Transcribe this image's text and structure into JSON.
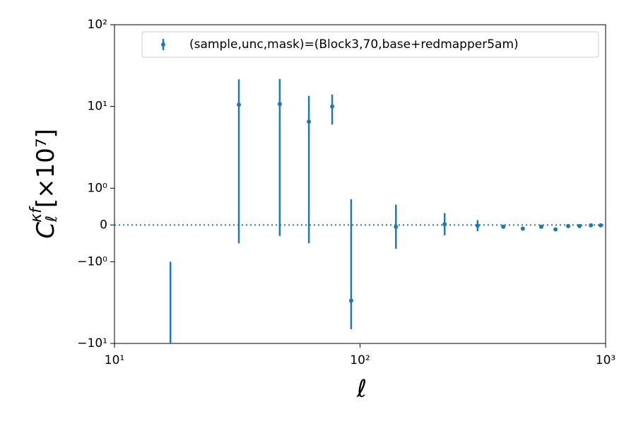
{
  "chart_data": {
    "type": "errorbar",
    "xlabel": "ℓ",
    "ylabel": {
      "base": "C",
      "sub": "ℓ",
      "sup": "κf",
      "rest": "[×10⁷]"
    },
    "xscale": "log",
    "yscale": "symlog",
    "linthresh": 1,
    "linscale": 0.45,
    "xlim": [
      10,
      1000
    ],
    "ylim": [
      -10,
      100
    ],
    "xticks": [
      {
        "value": 10,
        "label": "10¹"
      },
      {
        "value": 100,
        "label": "10²"
      },
      {
        "value": 1000,
        "label": "10³"
      }
    ],
    "yticks": [
      {
        "value": -10,
        "label": "−10¹"
      },
      {
        "value": -1,
        "label": "−10⁰"
      },
      0,
      {
        "value": 1,
        "label": "10⁰"
      },
      {
        "value": 10,
        "label": "10¹"
      },
      {
        "value": 100,
        "label": "10²"
      }
    ],
    "hline": 0,
    "legend": "upper right",
    "series": [
      {
        "name": "(sample,unc,mask)=(Block3,70,base+redmapper5am)",
        "color": "#1f77b4",
        "x": [
          16.9,
          32.1,
          47.1,
          61.9,
          77,
          92,
          140,
          221,
          301,
          383,
          460,
          547,
          625,
          704,
          783,
          871,
          955
        ],
        "values": [
          -15,
          10.5,
          10.7,
          6.5,
          10,
          -3,
          -0.05,
          0.02,
          -0.02,
          -0.05,
          -0.1,
          -0.05,
          -0.12,
          -0.03,
          -0.03,
          -0.01,
          -0.01
        ],
        "errors": [
          14,
          11,
          11,
          7,
          4,
          3.7,
          0.6,
          0.3,
          0.15,
          0.05,
          0.03,
          0.03,
          0.02,
          0.02,
          0.02,
          0.02,
          0.02
        ]
      }
    ]
  }
}
